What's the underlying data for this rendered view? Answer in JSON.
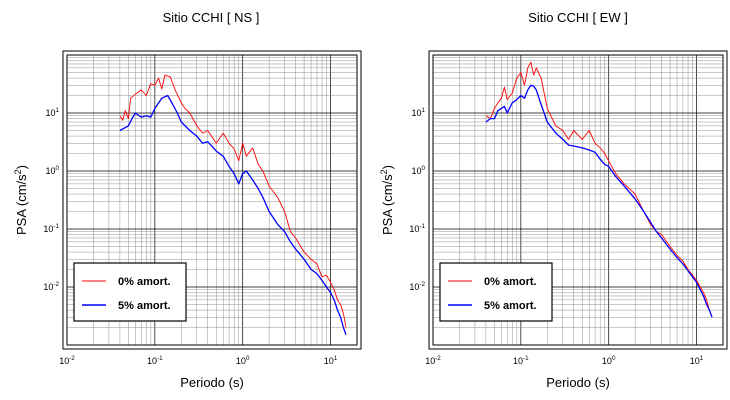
{
  "chart_data": [
    {
      "type": "line",
      "title": "Sitio CCHI [ NS ]",
      "xlabel": "Periodo (s)",
      "ylabel_main": "PSA (cm/s",
      "ylabel_sup": "2",
      "ylabel_close": ")",
      "xscale": "log",
      "yscale": "log",
      "xlim": [
        0.01,
        20
      ],
      "ylim": [
        0.001,
        100
      ],
      "grid": true,
      "legend_position": "bottom-left",
      "x_ticks": [
        {
          "value": 0.01,
          "base": "10",
          "exp": "-2"
        },
        {
          "value": 0.1,
          "base": "10",
          "exp": "-1"
        },
        {
          "value": 1,
          "base": "10",
          "exp": "0"
        },
        {
          "value": 10,
          "base": "10",
          "exp": "1"
        }
      ],
      "y_ticks": [
        {
          "value": 0.01,
          "base": "10",
          "exp": "-2"
        },
        {
          "value": 0.1,
          "base": "10",
          "exp": "-1"
        },
        {
          "value": 1,
          "base": "10",
          "exp": "0"
        },
        {
          "value": 10,
          "base": "10",
          "exp": "1"
        }
      ],
      "series": [
        {
          "name": "0% amort.",
          "color": "#ff0000",
          "points": [
            [
              0.04,
              9
            ],
            [
              0.043,
              7.5
            ],
            [
              0.046,
              11
            ],
            [
              0.05,
              8
            ],
            [
              0.053,
              18
            ],
            [
              0.06,
              21
            ],
            [
              0.07,
              25
            ],
            [
              0.08,
              20
            ],
            [
              0.09,
              32
            ],
            [
              0.1,
              30
            ],
            [
              0.11,
              40
            ],
            [
              0.12,
              26
            ],
            [
              0.13,
              45
            ],
            [
              0.15,
              42
            ],
            [
              0.17,
              25
            ],
            [
              0.2,
              15
            ],
            [
              0.22,
              12
            ],
            [
              0.25,
              10
            ],
            [
              0.3,
              6
            ],
            [
              0.35,
              4.5
            ],
            [
              0.4,
              5
            ],
            [
              0.5,
              3
            ],
            [
              0.6,
              4.5
            ],
            [
              0.7,
              3
            ],
            [
              0.8,
              2.4
            ],
            [
              0.9,
              1.5
            ],
            [
              1,
              3
            ],
            [
              1.1,
              1.8
            ],
            [
              1.3,
              2.5
            ],
            [
              1.5,
              1.3
            ],
            [
              1.7,
              1
            ],
            [
              2,
              0.55
            ],
            [
              2.5,
              0.35
            ],
            [
              3,
              0.2
            ],
            [
              3.5,
              0.09
            ],
            [
              4,
              0.07
            ],
            [
              5,
              0.04
            ],
            [
              6,
              0.03
            ],
            [
              7,
              0.025
            ],
            [
              8,
              0.015
            ],
            [
              9,
              0.016
            ],
            [
              10,
              0.012
            ],
            [
              11,
              0.009
            ],
            [
              12,
              0.006
            ],
            [
              13,
              0.005
            ],
            [
              14,
              0.0035
            ],
            [
              15,
              0.002
            ]
          ]
        },
        {
          "name": "5% amort.",
          "color": "#0000ff",
          "points": [
            [
              0.04,
              5
            ],
            [
              0.045,
              5.5
            ],
            [
              0.05,
              6
            ],
            [
              0.055,
              8
            ],
            [
              0.06,
              10
            ],
            [
              0.07,
              8.5
            ],
            [
              0.08,
              9
            ],
            [
              0.09,
              8.5
            ],
            [
              0.1,
              12
            ],
            [
              0.12,
              18
            ],
            [
              0.14,
              20
            ],
            [
              0.16,
              14
            ],
            [
              0.18,
              10
            ],
            [
              0.2,
              7
            ],
            [
              0.25,
              5
            ],
            [
              0.3,
              4
            ],
            [
              0.35,
              3
            ],
            [
              0.4,
              3.2
            ],
            [
              0.5,
              2.2
            ],
            [
              0.6,
              1.8
            ],
            [
              0.7,
              1.2
            ],
            [
              0.8,
              0.9
            ],
            [
              0.9,
              0.6
            ],
            [
              1,
              0.9
            ],
            [
              1.1,
              1
            ],
            [
              1.3,
              0.7
            ],
            [
              1.5,
              0.5
            ],
            [
              1.7,
              0.35
            ],
            [
              2,
              0.2
            ],
            [
              2.5,
              0.12
            ],
            [
              3,
              0.09
            ],
            [
              3.5,
              0.06
            ],
            [
              4,
              0.045
            ],
            [
              5,
              0.03
            ],
            [
              6,
              0.02
            ],
            [
              7,
              0.017
            ],
            [
              8,
              0.013
            ],
            [
              9,
              0.01
            ],
            [
              10,
              0.008
            ],
            [
              11,
              0.006
            ],
            [
              12,
              0.004
            ],
            [
              13,
              0.003
            ],
            [
              14,
              0.002
            ],
            [
              15,
              0.0015
            ]
          ]
        }
      ]
    },
    {
      "type": "line",
      "title": "Sitio CCHI [ EW ]",
      "xlabel": "Periodo (s)",
      "ylabel_main": "PSA (cm/s",
      "ylabel_sup": "2",
      "ylabel_close": ")",
      "xscale": "log",
      "yscale": "log",
      "xlim": [
        0.01,
        20
      ],
      "ylim": [
        0.001,
        100
      ],
      "grid": true,
      "legend_position": "bottom-left",
      "x_ticks": [
        {
          "value": 0.01,
          "base": "10",
          "exp": "-2"
        },
        {
          "value": 0.1,
          "base": "10",
          "exp": "-1"
        },
        {
          "value": 1,
          "base": "10",
          "exp": "0"
        },
        {
          "value": 10,
          "base": "10",
          "exp": "1"
        }
      ],
      "y_ticks": [
        {
          "value": 0.01,
          "base": "10",
          "exp": "-2"
        },
        {
          "value": 0.1,
          "base": "10",
          "exp": "-1"
        },
        {
          "value": 1,
          "base": "10",
          "exp": "0"
        },
        {
          "value": 10,
          "base": "10",
          "exp": "1"
        }
      ],
      "series": [
        {
          "name": "0% amort.",
          "color": "#ff0000",
          "points": [
            [
              0.04,
              9
            ],
            [
              0.045,
              8
            ],
            [
              0.05,
              12
            ],
            [
              0.055,
              15
            ],
            [
              0.06,
              18
            ],
            [
              0.065,
              28
            ],
            [
              0.07,
              17
            ],
            [
              0.08,
              22
            ],
            [
              0.09,
              40
            ],
            [
              0.1,
              50
            ],
            [
              0.11,
              30
            ],
            [
              0.12,
              60
            ],
            [
              0.13,
              75
            ],
            [
              0.14,
              45
            ],
            [
              0.15,
              60
            ],
            [
              0.17,
              40
            ],
            [
              0.2,
              12
            ],
            [
              0.25,
              6
            ],
            [
              0.3,
              5
            ],
            [
              0.35,
              3.5
            ],
            [
              0.4,
              5
            ],
            [
              0.5,
              3.5
            ],
            [
              0.6,
              5
            ],
            [
              0.7,
              3
            ],
            [
              0.8,
              2.5
            ],
            [
              0.9,
              2
            ],
            [
              1,
              1.5
            ],
            [
              1.2,
              0.9
            ],
            [
              1.5,
              0.6
            ],
            [
              2,
              0.4
            ],
            [
              2.5,
              0.2
            ],
            [
              3,
              0.12
            ],
            [
              3.5,
              0.09
            ],
            [
              4,
              0.08
            ],
            [
              5,
              0.05
            ],
            [
              6,
              0.035
            ],
            [
              7,
              0.028
            ],
            [
              8,
              0.02
            ],
            [
              9,
              0.016
            ],
            [
              10,
              0.013
            ],
            [
              11,
              0.01
            ],
            [
              12,
              0.008
            ],
            [
              13,
              0.006
            ],
            [
              14,
              0.004
            ],
            [
              15,
              0.003
            ]
          ]
        },
        {
          "name": "5% amort.",
          "color": "#0000ff",
          "points": [
            [
              0.04,
              7
            ],
            [
              0.045,
              8
            ],
            [
              0.05,
              8
            ],
            [
              0.055,
              11
            ],
            [
              0.06,
              12
            ],
            [
              0.065,
              13
            ],
            [
              0.07,
              10
            ],
            [
              0.08,
              15
            ],
            [
              0.09,
              17
            ],
            [
              0.1,
              20
            ],
            [
              0.11,
              18
            ],
            [
              0.12,
              25
            ],
            [
              0.13,
              30
            ],
            [
              0.14,
              29
            ],
            [
              0.15,
              25
            ],
            [
              0.17,
              14
            ],
            [
              0.2,
              7
            ],
            [
              0.25,
              4.5
            ],
            [
              0.3,
              3.5
            ],
            [
              0.35,
              2.8
            ],
            [
              0.4,
              2.7
            ],
            [
              0.5,
              2.5
            ],
            [
              0.6,
              2.3
            ],
            [
              0.7,
              2.1
            ],
            [
              0.8,
              1.6
            ],
            [
              0.9,
              1.3
            ],
            [
              1,
              1.2
            ],
            [
              1.2,
              0.8
            ],
            [
              1.5,
              0.55
            ],
            [
              2,
              0.33
            ],
            [
              2.5,
              0.2
            ],
            [
              3,
              0.13
            ],
            [
              3.5,
              0.09
            ],
            [
              4,
              0.07
            ],
            [
              5,
              0.045
            ],
            [
              6,
              0.032
            ],
            [
              7,
              0.025
            ],
            [
              8,
              0.019
            ],
            [
              9,
              0.015
            ],
            [
              10,
              0.012
            ],
            [
              11,
              0.009
            ],
            [
              12,
              0.007
            ],
            [
              13,
              0.005
            ],
            [
              14,
              0.004
            ],
            [
              15,
              0.003
            ]
          ]
        }
      ]
    }
  ]
}
